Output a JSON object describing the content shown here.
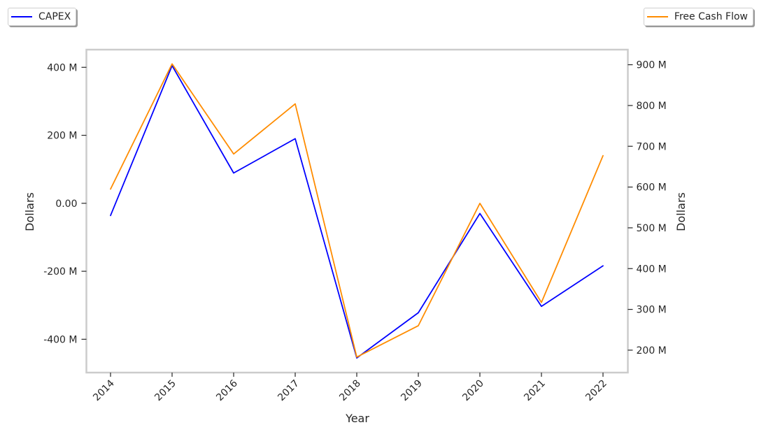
{
  "chart_data": {
    "type": "line",
    "xlabel": "Year",
    "ylabel_left": "Dollars",
    "ylabel_right": "Dollars",
    "categories": [
      "2014",
      "2015",
      "2016",
      "2017",
      "2018",
      "2019",
      "2020",
      "2021",
      "2022"
    ],
    "left_axis": {
      "ylim": [
        -498,
        452
      ],
      "ticks": [
        400,
        200,
        0,
        -200,
        -400
      ],
      "tick_labels": [
        "400 M",
        "200 M",
        "0.00",
        "-200 M",
        "-400 M"
      ]
    },
    "right_axis": {
      "ylim": [
        145,
        937
      ],
      "ticks": [
        900,
        800,
        700,
        600,
        500,
        400,
        300,
        200
      ],
      "tick_labels": [
        "900 M",
        "800 M",
        "700 M",
        "600 M",
        "500 M",
        "400 M",
        "300 M",
        "200 M"
      ]
    },
    "series": [
      {
        "name": "CAPEX",
        "axis": "left",
        "color": "#0000ff",
        "values": [
          -36,
          405,
          89,
          190,
          -455,
          -322,
          -30,
          -303,
          -184
        ]
      },
      {
        "name": "Free Cash Flow",
        "axis": "right",
        "color": "#ff8c00",
        "values": [
          595,
          902,
          681,
          804,
          183,
          260,
          560,
          317,
          677
        ]
      }
    ],
    "legend": [
      "top-left",
      "top-right"
    ],
    "grid": false
  }
}
